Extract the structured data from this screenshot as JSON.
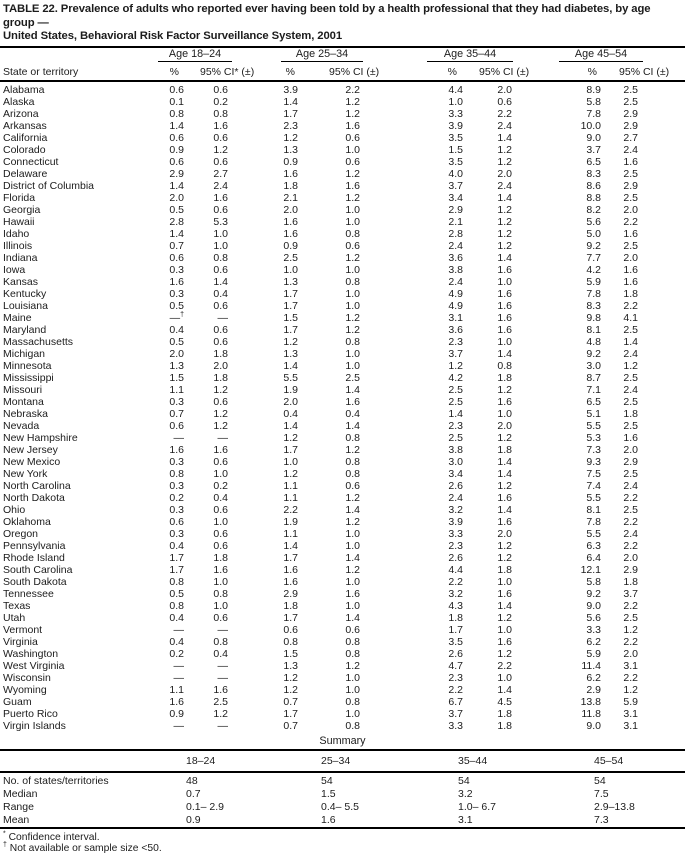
{
  "title_line1": "TABLE 22. Prevalence of adults who reported ever having been told by a health professional that they had diabetes, by age group —",
  "title_line2": "United States, Behavioral Risk Factor Surveillance System, 2001",
  "columns": {
    "state_header": "State or territory",
    "groups": [
      {
        "label": "Age 18–24",
        "pct": "%",
        "ci": "95% CI* (±)"
      },
      {
        "label": "Age 25–34",
        "pct": "%",
        "ci": "95% CI (±)"
      },
      {
        "label": "Age 35–44",
        "pct": "%",
        "ci": "95% CI (±)"
      },
      {
        "label": "Age 45–54",
        "pct": "%",
        "ci": "95% CI (±)"
      }
    ]
  },
  "rows": [
    {
      "state": "Alabama",
      "values": [
        "0.6",
        "0.6",
        "3.9",
        "2.2",
        "4.4",
        "2.0",
        "8.9",
        "2.5"
      ]
    },
    {
      "state": "Alaska",
      "values": [
        "0.1",
        "0.2",
        "1.4",
        "1.2",
        "1.0",
        "0.6",
        "5.8",
        "2.5"
      ]
    },
    {
      "state": "Arizona",
      "values": [
        "0.8",
        "0.8",
        "1.7",
        "1.2",
        "3.3",
        "2.2",
        "7.8",
        "2.9"
      ]
    },
    {
      "state": "Arkansas",
      "values": [
        "1.4",
        "1.6",
        "2.3",
        "1.6",
        "3.9",
        "2.4",
        "10.0",
        "2.9"
      ]
    },
    {
      "state": "California",
      "values": [
        "0.6",
        "0.6",
        "1.2",
        "0.6",
        "3.5",
        "1.4",
        "9.0",
        "2.7"
      ]
    },
    {
      "state": "Colorado",
      "values": [
        "0.9",
        "1.2",
        "1.3",
        "1.0",
        "1.5",
        "1.2",
        "3.7",
        "2.4"
      ]
    },
    {
      "state": "Connecticut",
      "values": [
        "0.6",
        "0.6",
        "0.9",
        "0.6",
        "3.5",
        "1.2",
        "6.5",
        "1.6"
      ]
    },
    {
      "state": "Delaware",
      "values": [
        "2.9",
        "2.7",
        "1.6",
        "1.2",
        "4.0",
        "2.0",
        "8.3",
        "2.5"
      ]
    },
    {
      "state": "District of Columbia",
      "values": [
        "1.4",
        "2.4",
        "1.8",
        "1.6",
        "3.7",
        "2.4",
        "8.6",
        "2.9"
      ]
    },
    {
      "state": "Florida",
      "values": [
        "2.0",
        "1.6",
        "2.1",
        "1.2",
        "3.4",
        "1.4",
        "8.8",
        "2.5"
      ]
    },
    {
      "state": "Georgia",
      "values": [
        "0.5",
        "0.6",
        "2.0",
        "1.0",
        "2.9",
        "1.2",
        "8.2",
        "2.0"
      ]
    },
    {
      "state": "Hawaii",
      "values": [
        "2.8",
        "5.3",
        "1.6",
        "1.0",
        "2.1",
        "1.2",
        "5.6",
        "2.2"
      ]
    },
    {
      "state": "Idaho",
      "values": [
        "1.4",
        "1.0",
        "1.6",
        "0.8",
        "2.8",
        "1.2",
        "5.0",
        "1.6"
      ]
    },
    {
      "state": "Illinois",
      "values": [
        "0.7",
        "1.0",
        "0.9",
        "0.6",
        "2.4",
        "1.2",
        "9.2",
        "2.5"
      ]
    },
    {
      "state": "Indiana",
      "values": [
        "0.6",
        "0.8",
        "2.5",
        "1.2",
        "3.6",
        "1.4",
        "7.7",
        "2.0"
      ]
    },
    {
      "state": "Iowa",
      "values": [
        "0.3",
        "0.6",
        "1.0",
        "1.0",
        "3.8",
        "1.6",
        "4.2",
        "1.6"
      ]
    },
    {
      "state": "Kansas",
      "values": [
        "1.6",
        "1.4",
        "1.3",
        "0.8",
        "2.4",
        "1.0",
        "5.9",
        "1.6"
      ]
    },
    {
      "state": "Kentucky",
      "values": [
        "0.3",
        "0.4",
        "1.7",
        "1.0",
        "4.9",
        "1.6",
        "7.8",
        "1.8"
      ]
    },
    {
      "state": "Louisiana",
      "values": [
        "0.5",
        "0.6",
        "1.7",
        "1.0",
        "4.9",
        "1.6",
        "8.3",
        "2.2"
      ]
    },
    {
      "state": "Maine",
      "values": [
        "—†",
        "—",
        "1.5",
        "1.2",
        "3.1",
        "1.6",
        "9.8",
        "4.1"
      ]
    },
    {
      "state": "Maryland",
      "values": [
        "0.4",
        "0.6",
        "1.7",
        "1.2",
        "3.6",
        "1.6",
        "8.1",
        "2.5"
      ]
    },
    {
      "state": "Massachusetts",
      "values": [
        "0.5",
        "0.6",
        "1.2",
        "0.8",
        "2.3",
        "1.0",
        "4.8",
        "1.4"
      ]
    },
    {
      "state": "Michigan",
      "values": [
        "2.0",
        "1.8",
        "1.3",
        "1.0",
        "3.7",
        "1.4",
        "9.2",
        "2.4"
      ]
    },
    {
      "state": "Minnesota",
      "values": [
        "1.3",
        "2.0",
        "1.4",
        "1.0",
        "1.2",
        "0.8",
        "3.0",
        "1.2"
      ]
    },
    {
      "state": "Mississippi",
      "values": [
        "1.5",
        "1.8",
        "5.5",
        "2.5",
        "4.2",
        "1.8",
        "8.7",
        "2.5"
      ]
    },
    {
      "state": "Missouri",
      "values": [
        "1.1",
        "1.2",
        "1.9",
        "1.4",
        "2.5",
        "1.2",
        "7.1",
        "2.4"
      ]
    },
    {
      "state": "Montana",
      "values": [
        "0.3",
        "0.6",
        "2.0",
        "1.6",
        "2.5",
        "1.6",
        "6.5",
        "2.5"
      ]
    },
    {
      "state": "Nebraska",
      "values": [
        "0.7",
        "1.2",
        "0.4",
        "0.4",
        "1.4",
        "1.0",
        "5.1",
        "1.8"
      ]
    },
    {
      "state": "Nevada",
      "values": [
        "0.6",
        "1.2",
        "1.4",
        "1.4",
        "2.3",
        "2.0",
        "5.5",
        "2.5"
      ]
    },
    {
      "state": "New Hampshire",
      "values": [
        "—",
        "—",
        "1.2",
        "0.8",
        "2.5",
        "1.2",
        "5.3",
        "1.6"
      ]
    },
    {
      "state": "New Jersey",
      "values": [
        "1.6",
        "1.6",
        "1.7",
        "1.2",
        "3.8",
        "1.8",
        "7.3",
        "2.0"
      ]
    },
    {
      "state": "New Mexico",
      "values": [
        "0.3",
        "0.6",
        "1.0",
        "0.8",
        "3.0",
        "1.4",
        "9.3",
        "2.9"
      ]
    },
    {
      "state": "New York",
      "values": [
        "0.8",
        "1.0",
        "1.2",
        "0.8",
        "3.4",
        "1.4",
        "7.5",
        "2.5"
      ]
    },
    {
      "state": "North Carolina",
      "values": [
        "0.3",
        "0.2",
        "1.1",
        "0.6",
        "2.6",
        "1.2",
        "7.4",
        "2.4"
      ]
    },
    {
      "state": "North Dakota",
      "values": [
        "0.2",
        "0.4",
        "1.1",
        "1.2",
        "2.4",
        "1.6",
        "5.5",
        "2.2"
      ]
    },
    {
      "state": "Ohio",
      "values": [
        "0.3",
        "0.6",
        "2.2",
        "1.4",
        "3.2",
        "1.4",
        "8.1",
        "2.5"
      ]
    },
    {
      "state": "Oklahoma",
      "values": [
        "0.6",
        "1.0",
        "1.9",
        "1.2",
        "3.9",
        "1.6",
        "7.8",
        "2.2"
      ]
    },
    {
      "state": "Oregon",
      "values": [
        "0.3",
        "0.6",
        "1.1",
        "1.0",
        "3.3",
        "2.0",
        "5.5",
        "2.4"
      ]
    },
    {
      "state": "Pennsylvania",
      "values": [
        "0.4",
        "0.6",
        "1.4",
        "1.0",
        "2.3",
        "1.2",
        "6.3",
        "2.2"
      ]
    },
    {
      "state": "Rhode Island",
      "values": [
        "1.7",
        "1.8",
        "1.7",
        "1.4",
        "2.6",
        "1.2",
        "6.4",
        "2.0"
      ]
    },
    {
      "state": "South Carolina",
      "values": [
        "1.7",
        "1.6",
        "1.6",
        "1.2",
        "4.4",
        "1.8",
        "12.1",
        "2.9"
      ]
    },
    {
      "state": "South Dakota",
      "values": [
        "0.8",
        "1.0",
        "1.6",
        "1.0",
        "2.2",
        "1.0",
        "5.8",
        "1.8"
      ]
    },
    {
      "state": "Tennessee",
      "values": [
        "0.5",
        "0.8",
        "2.9",
        "1.6",
        "3.2",
        "1.6",
        "9.2",
        "3.7"
      ]
    },
    {
      "state": "Texas",
      "values": [
        "0.8",
        "1.0",
        "1.8",
        "1.0",
        "4.3",
        "1.4",
        "9.0",
        "2.2"
      ]
    },
    {
      "state": "Utah",
      "values": [
        "0.4",
        "0.6",
        "1.7",
        "1.4",
        "1.8",
        "1.2",
        "5.6",
        "2.5"
      ]
    },
    {
      "state": "Vermont",
      "values": [
        "—",
        "—",
        "0.6",
        "0.6",
        "1.7",
        "1.0",
        "3.3",
        "1.2"
      ]
    },
    {
      "state": "Virginia",
      "values": [
        "0.4",
        "0.8",
        "0.8",
        "0.8",
        "3.5",
        "1.6",
        "6.2",
        "2.2"
      ]
    },
    {
      "state": "Washington",
      "values": [
        "0.2",
        "0.4",
        "1.5",
        "0.8",
        "2.6",
        "1.2",
        "5.9",
        "2.0"
      ]
    },
    {
      "state": "West Virginia",
      "values": [
        "—",
        "—",
        "1.3",
        "1.2",
        "4.7",
        "2.2",
        "11.4",
        "3.1"
      ]
    },
    {
      "state": "Wisconsin",
      "values": [
        "—",
        "—",
        "1.2",
        "1.0",
        "2.3",
        "1.0",
        "6.2",
        "2.2"
      ]
    },
    {
      "state": "Wyoming",
      "values": [
        "1.1",
        "1.6",
        "1.2",
        "1.0",
        "2.2",
        "1.4",
        "2.9",
        "1.2"
      ]
    },
    {
      "state": "Guam",
      "values": [
        "1.6",
        "2.5",
        "0.7",
        "0.8",
        "6.7",
        "4.5",
        "13.8",
        "5.9"
      ]
    },
    {
      "state": "Puerto Rico",
      "values": [
        "0.9",
        "1.2",
        "1.7",
        "1.0",
        "3.7",
        "1.8",
        "11.8",
        "3.1"
      ]
    },
    {
      "state": "Virgin Islands",
      "values": [
        "—",
        "—",
        "0.7",
        "0.8",
        "3.3",
        "1.8",
        "9.0",
        "3.1"
      ]
    }
  ],
  "summary": {
    "title": "Summary",
    "headers": [
      "18–24",
      "25–34",
      "35–44",
      "45–54"
    ],
    "rows": [
      {
        "label": "No. of states/territories",
        "values": [
          "48",
          "54",
          "54",
          "54"
        ]
      },
      {
        "label": "Median",
        "values": [
          "0.7",
          "1.5",
          "3.2",
          "7.5"
        ]
      },
      {
        "label": "Range",
        "values": [
          "0.1– 2.9",
          "0.4– 5.5",
          "1.0– 6.7",
          "2.9–13.8"
        ]
      },
      {
        "label": "Mean",
        "values": [
          "0.9",
          "1.6",
          "3.1",
          "7.3"
        ]
      }
    ]
  },
  "footnotes": [
    {
      "marker": "*",
      "text": " Confidence interval."
    },
    {
      "marker": "†",
      "text": " Not available or sample size <50."
    }
  ]
}
